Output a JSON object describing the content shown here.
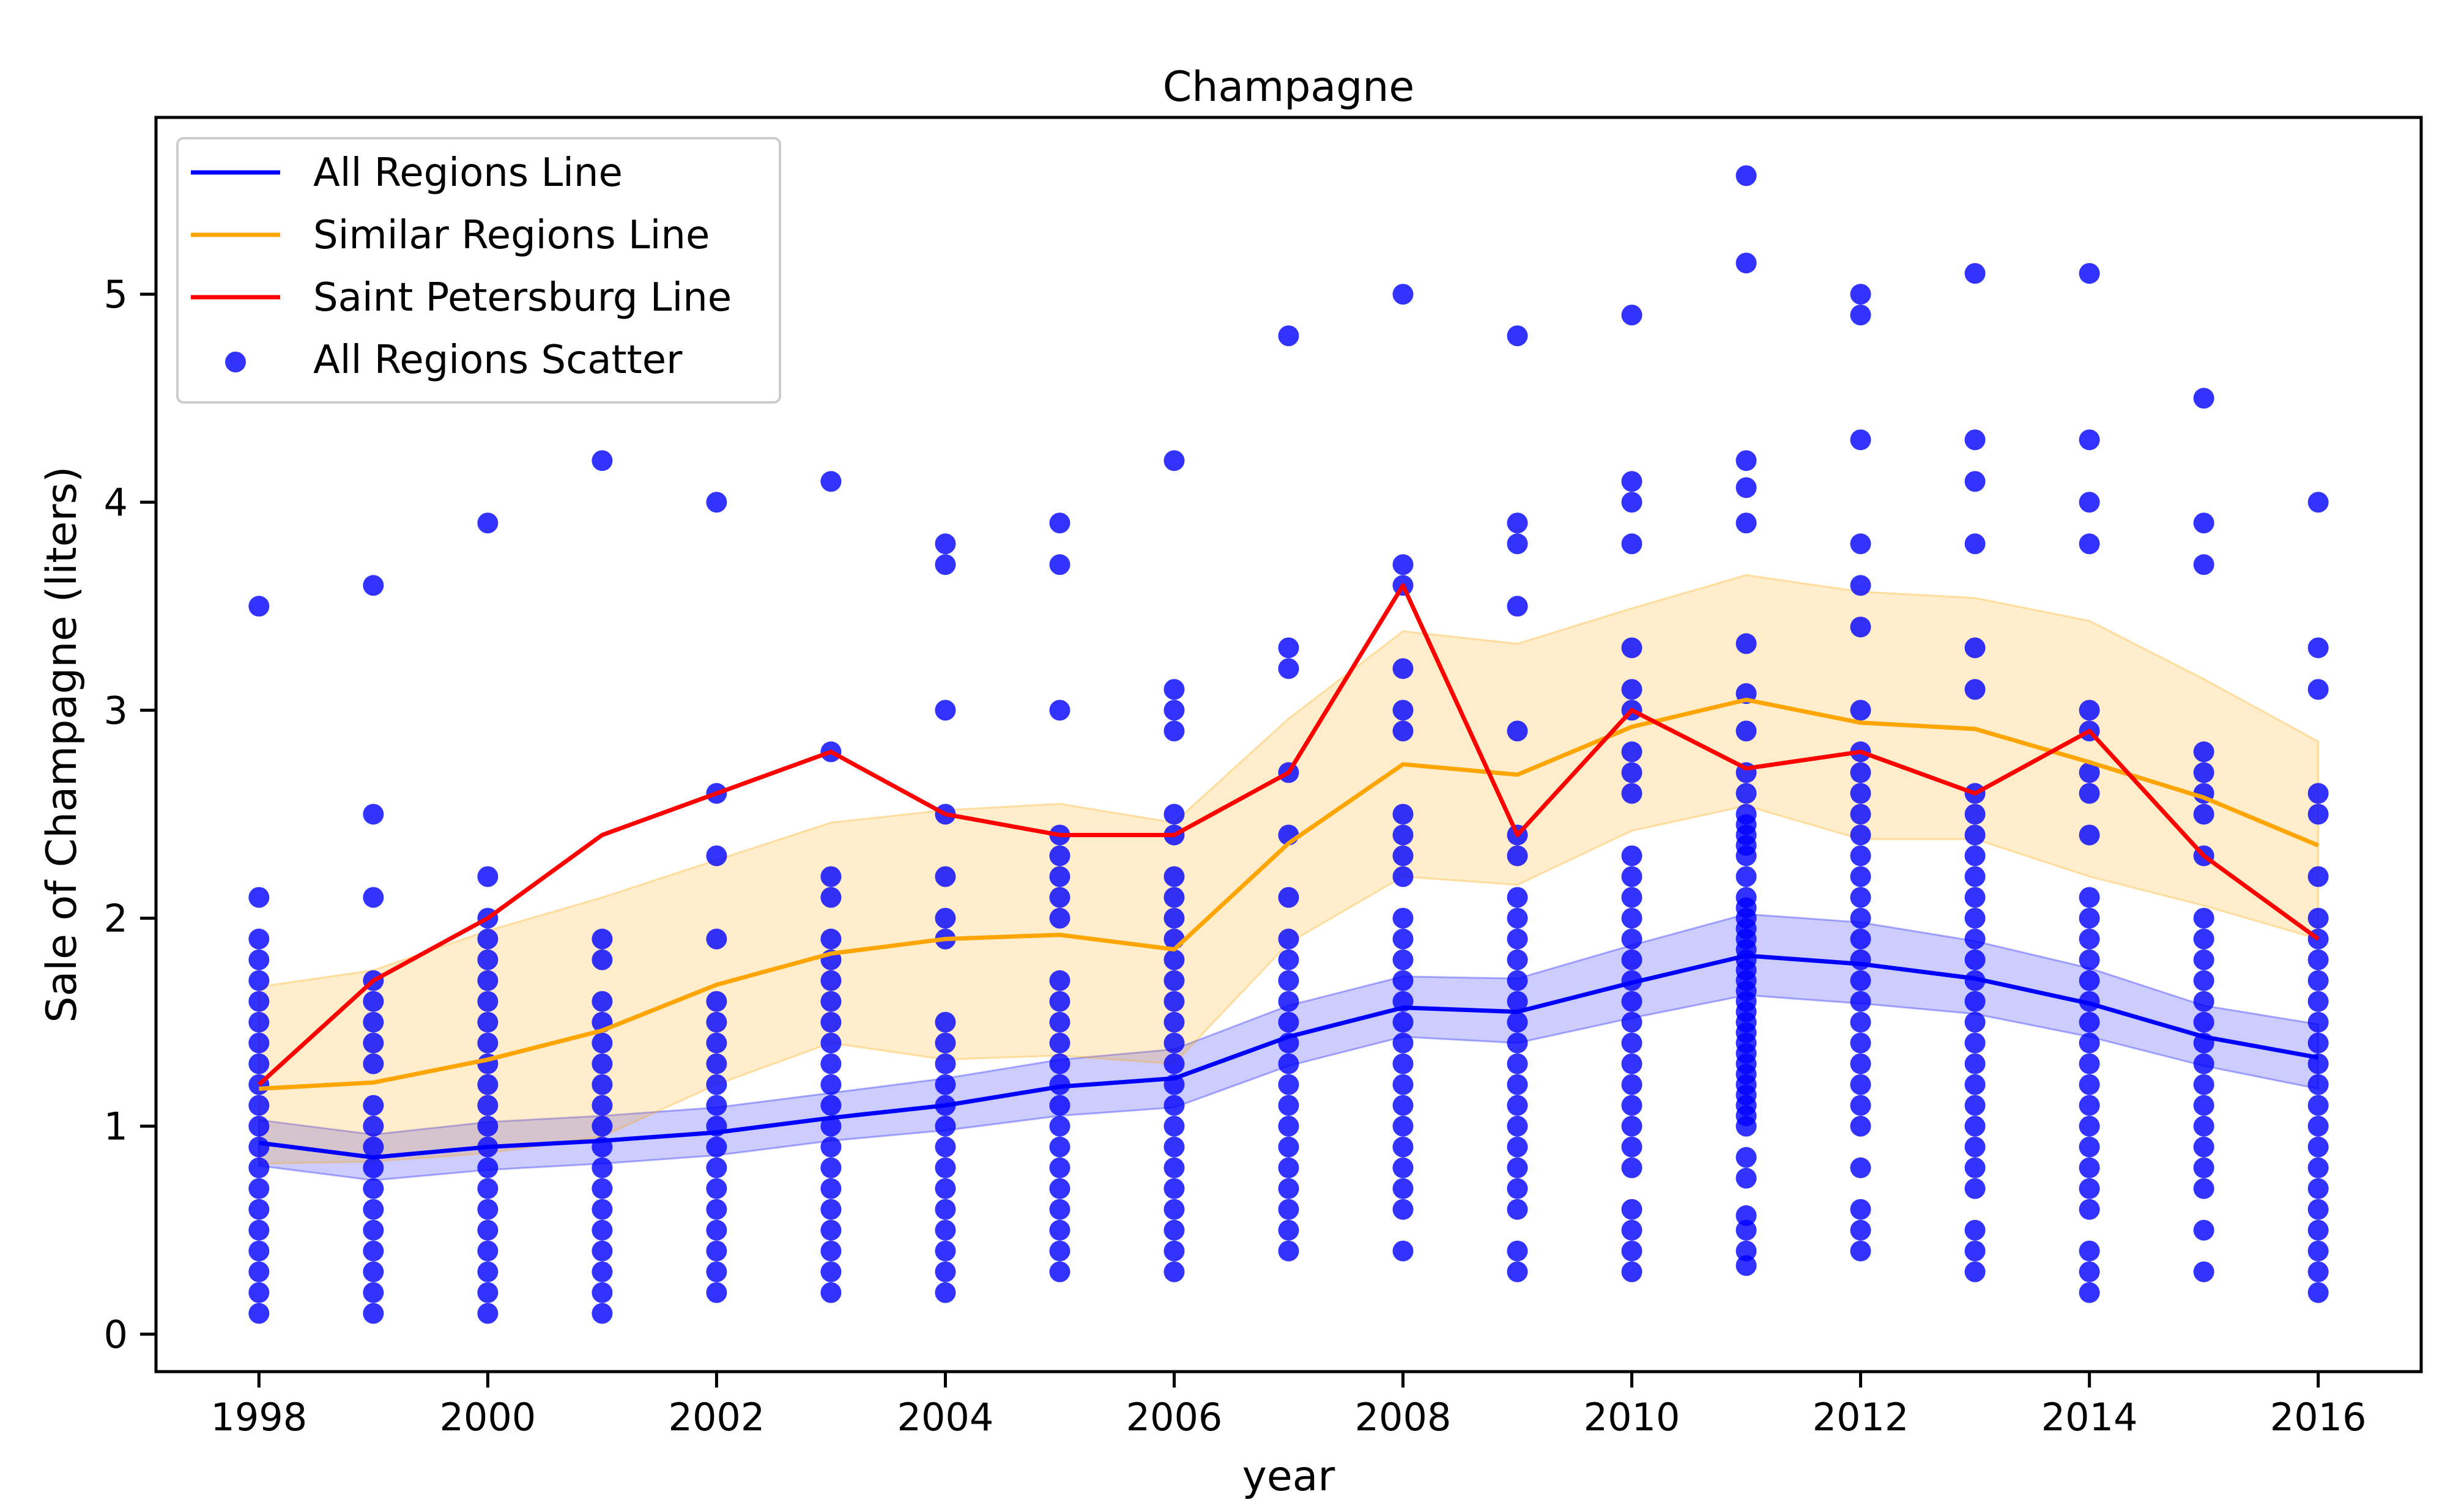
{
  "chart_data": {
    "type": "line",
    "title": "Champagne",
    "xlabel": "year",
    "ylabel": "Sale of Champagne (liters)",
    "xlim": [
      1997.1,
      2016.9
    ],
    "ylim": [
      -0.18,
      5.85
    ],
    "xticks": [
      1998,
      2000,
      2002,
      2004,
      2006,
      2008,
      2010,
      2012,
      2014,
      2016
    ],
    "yticks": [
      0,
      1,
      2,
      3,
      4,
      5
    ],
    "grid": false,
    "legend_position": "top-left",
    "legend": [
      {
        "label": "All Regions Line",
        "kind": "line",
        "color": "#0000ff"
      },
      {
        "label": "Similar Regions Line",
        "kind": "line",
        "color": "#ffa500"
      },
      {
        "label": "Saint Petersburg Line",
        "kind": "line",
        "color": "#ff0000"
      },
      {
        "label": "All Regions Scatter",
        "kind": "marker",
        "color": "#0000ff"
      }
    ],
    "years": [
      1998,
      1999,
      2000,
      2001,
      2002,
      2003,
      2004,
      2005,
      2006,
      2007,
      2008,
      2009,
      2010,
      2011,
      2012,
      2013,
      2014,
      2015,
      2016
    ],
    "series": [
      {
        "name": "All Regions Line",
        "color": "#0000ff",
        "values": [
          0.92,
          0.85,
          0.9,
          0.93,
          0.97,
          1.04,
          1.1,
          1.19,
          1.23,
          1.43,
          1.57,
          1.55,
          1.69,
          1.82,
          1.78,
          1.71,
          1.59,
          1.43,
          1.33
        ],
        "band_low": [
          0.81,
          0.74,
          0.79,
          0.82,
          0.86,
          0.93,
          0.98,
          1.05,
          1.09,
          1.29,
          1.43,
          1.4,
          1.52,
          1.63,
          1.59,
          1.54,
          1.43,
          1.29,
          1.18
        ],
        "band_high": [
          1.03,
          0.96,
          1.02,
          1.05,
          1.09,
          1.16,
          1.23,
          1.32,
          1.37,
          1.58,
          1.72,
          1.71,
          1.87,
          2.02,
          1.98,
          1.89,
          1.76,
          1.58,
          1.49
        ],
        "band_color": "#0000ff"
      },
      {
        "name": "Similar Regions Line",
        "color": "#ffa500",
        "values": [
          1.18,
          1.21,
          1.32,
          1.46,
          1.68,
          1.83,
          1.9,
          1.92,
          1.85,
          2.36,
          2.74,
          2.69,
          2.92,
          3.05,
          2.94,
          2.91,
          2.75,
          2.58,
          2.35
        ],
        "band_low": [
          0.82,
          0.83,
          0.87,
          0.95,
          1.2,
          1.4,
          1.32,
          1.34,
          1.3,
          1.88,
          2.2,
          2.16,
          2.42,
          2.54,
          2.38,
          2.38,
          2.2,
          2.06,
          1.9
        ],
        "band_high": [
          1.67,
          1.75,
          1.94,
          2.1,
          2.28,
          2.46,
          2.52,
          2.55,
          2.46,
          2.96,
          3.38,
          3.32,
          3.49,
          3.65,
          3.57,
          3.54,
          3.43,
          3.15,
          2.85
        ],
        "band_color": "#ffa500"
      },
      {
        "name": "Saint Petersburg Line",
        "color": "#ff0000",
        "values": [
          1.2,
          1.7,
          2.0,
          2.4,
          2.6,
          2.8,
          2.5,
          2.4,
          2.4,
          2.7,
          3.6,
          2.4,
          3.0,
          2.72,
          2.8,
          2.6,
          2.9,
          2.3,
          1.9
        ]
      }
    ],
    "scatter": {
      "name": "All Regions Scatter",
      "color": "#0000ff",
      "points_by_year": [
        [
          0.1,
          0.2,
          0.3,
          0.4,
          0.5,
          0.6,
          0.7,
          0.8,
          0.9,
          1.0,
          1.1,
          1.2,
          1.3,
          1.4,
          1.5,
          1.6,
          1.7,
          1.8,
          1.9,
          2.1,
          3.5
        ],
        [
          0.1,
          0.2,
          0.3,
          0.4,
          0.5,
          0.6,
          0.7,
          0.8,
          0.9,
          1.0,
          1.1,
          1.3,
          1.4,
          1.5,
          1.6,
          1.7,
          2.1,
          2.5,
          3.6
        ],
        [
          0.1,
          0.2,
          0.3,
          0.4,
          0.5,
          0.6,
          0.7,
          0.8,
          0.9,
          1.0,
          1.1,
          1.2,
          1.3,
          1.4,
          1.5,
          1.6,
          1.7,
          1.8,
          1.9,
          2.0,
          2.2,
          3.9
        ],
        [
          0.1,
          0.2,
          0.3,
          0.4,
          0.5,
          0.6,
          0.7,
          0.8,
          0.9,
          1.0,
          1.1,
          1.2,
          1.3,
          1.4,
          1.5,
          1.6,
          1.8,
          1.9,
          4.2
        ],
        [
          0.2,
          0.3,
          0.4,
          0.5,
          0.6,
          0.7,
          0.8,
          0.9,
          1.0,
          1.1,
          1.2,
          1.3,
          1.4,
          1.5,
          1.6,
          1.9,
          2.3,
          2.6,
          4.0
        ],
        [
          0.2,
          0.3,
          0.4,
          0.5,
          0.6,
          0.7,
          0.8,
          0.9,
          1.0,
          1.1,
          1.2,
          1.3,
          1.4,
          1.5,
          1.6,
          1.7,
          1.8,
          1.9,
          2.1,
          2.2,
          2.8,
          4.1
        ],
        [
          0.2,
          0.3,
          0.4,
          0.5,
          0.6,
          0.7,
          0.8,
          0.9,
          1.0,
          1.1,
          1.2,
          1.3,
          1.4,
          1.5,
          1.9,
          2.0,
          2.2,
          2.5,
          3.0,
          3.7,
          3.8
        ],
        [
          0.3,
          0.4,
          0.5,
          0.6,
          0.7,
          0.8,
          0.9,
          1.0,
          1.1,
          1.2,
          1.3,
          1.4,
          1.5,
          1.6,
          1.7,
          2.0,
          2.1,
          2.2,
          2.3,
          2.4,
          3.0,
          3.7,
          3.9
        ],
        [
          0.3,
          0.4,
          0.5,
          0.6,
          0.7,
          0.8,
          0.9,
          1.0,
          1.1,
          1.2,
          1.3,
          1.4,
          1.5,
          1.6,
          1.7,
          1.8,
          1.9,
          2.0,
          2.1,
          2.2,
          2.4,
          2.5,
          2.9,
          3.0,
          3.1,
          4.2
        ],
        [
          0.4,
          0.5,
          0.6,
          0.7,
          0.8,
          0.9,
          1.0,
          1.1,
          1.2,
          1.3,
          1.4,
          1.5,
          1.6,
          1.7,
          1.8,
          1.9,
          2.1,
          2.4,
          2.7,
          3.2,
          3.3,
          4.8
        ],
        [
          0.4,
          0.6,
          0.7,
          0.8,
          0.9,
          1.0,
          1.1,
          1.2,
          1.3,
          1.4,
          1.5,
          1.6,
          1.7,
          1.8,
          1.9,
          2.0,
          2.2,
          2.3,
          2.4,
          2.5,
          2.9,
          3.0,
          3.2,
          3.6,
          3.7,
          5.0
        ],
        [
          0.3,
          0.4,
          0.6,
          0.7,
          0.8,
          0.9,
          1.0,
          1.1,
          1.2,
          1.3,
          1.4,
          1.5,
          1.6,
          1.7,
          1.8,
          1.9,
          2.0,
          2.1,
          2.3,
          2.4,
          2.9,
          3.5,
          3.8,
          3.9,
          4.8
        ],
        [
          0.3,
          0.4,
          0.5,
          0.6,
          0.8,
          0.9,
          1.0,
          1.1,
          1.2,
          1.3,
          1.4,
          1.5,
          1.6,
          1.7,
          1.8,
          1.9,
          2.0,
          2.1,
          2.2,
          2.3,
          2.6,
          2.7,
          2.8,
          3.0,
          3.1,
          3.3,
          3.8,
          4.0,
          4.1,
          4.9
        ],
        [
          0.33,
          0.4,
          0.5,
          0.57,
          0.75,
          0.85,
          1.0,
          1.05,
          1.1,
          1.15,
          1.2,
          1.25,
          1.3,
          1.35,
          1.4,
          1.45,
          1.5,
          1.55,
          1.6,
          1.65,
          1.7,
          1.75,
          1.8,
          1.85,
          1.9,
          1.95,
          2.0,
          2.05,
          2.1,
          2.2,
          2.3,
          2.35,
          2.4,
          2.45,
          2.5,
          2.6,
          2.7,
          2.9,
          3.08,
          3.32,
          3.9,
          4.07,
          4.2,
          5.15,
          5.57
        ],
        [
          0.4,
          0.5,
          0.6,
          0.8,
          1.0,
          1.1,
          1.2,
          1.3,
          1.4,
          1.5,
          1.6,
          1.7,
          1.8,
          1.9,
          2.0,
          2.1,
          2.2,
          2.3,
          2.4,
          2.5,
          2.6,
          2.7,
          2.8,
          3.0,
          3.4,
          3.6,
          3.8,
          4.3,
          4.9,
          5.0
        ],
        [
          0.3,
          0.4,
          0.5,
          0.7,
          0.8,
          0.9,
          1.0,
          1.1,
          1.2,
          1.3,
          1.4,
          1.5,
          1.6,
          1.7,
          1.8,
          1.9,
          2.0,
          2.1,
          2.2,
          2.3,
          2.4,
          2.5,
          2.6,
          3.1,
          3.3,
          3.8,
          4.1,
          4.3,
          5.1
        ],
        [
          0.2,
          0.3,
          0.4,
          0.6,
          0.7,
          0.8,
          0.9,
          1.0,
          1.1,
          1.2,
          1.3,
          1.4,
          1.5,
          1.6,
          1.7,
          1.8,
          1.9,
          2.0,
          2.1,
          2.4,
          2.6,
          2.7,
          2.9,
          3.0,
          3.8,
          4.0,
          4.3,
          5.1
        ],
        [
          0.3,
          0.5,
          0.7,
          0.8,
          0.9,
          1.0,
          1.1,
          1.2,
          1.3,
          1.4,
          1.5,
          1.6,
          1.7,
          1.8,
          1.9,
          2.0,
          2.3,
          2.5,
          2.6,
          2.7,
          2.8,
          3.7,
          3.9,
          4.5
        ],
        [
          0.2,
          0.3,
          0.4,
          0.5,
          0.6,
          0.7,
          0.8,
          0.9,
          1.0,
          1.1,
          1.2,
          1.3,
          1.4,
          1.5,
          1.6,
          1.7,
          1.8,
          1.9,
          2.0,
          2.2,
          2.5,
          2.6,
          3.1,
          3.3,
          4.0
        ]
      ]
    }
  }
}
